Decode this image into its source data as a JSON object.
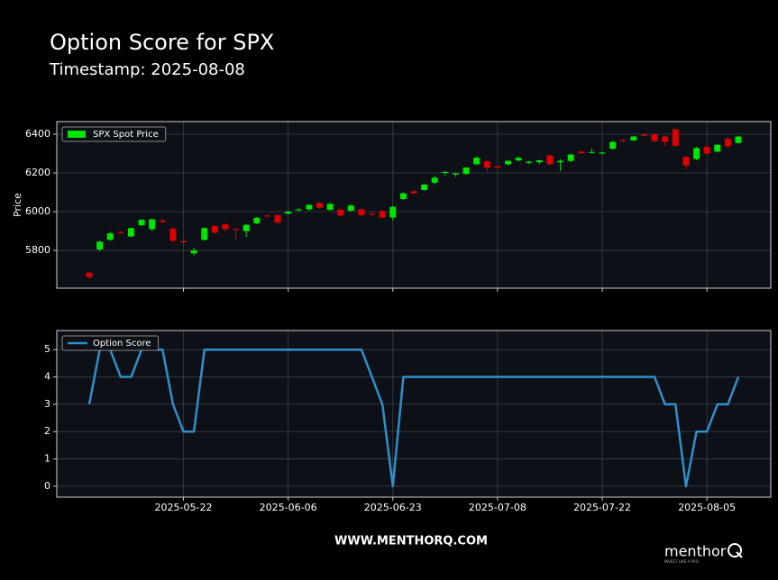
{
  "chart_data": [
    {
      "type": "candlestick",
      "title": "Option Score for SPX",
      "subtitle": "Timestamp: 2025-08-08",
      "ylabel": "Price",
      "ylim": [
        5605,
        6465
      ],
      "yticks": [
        5800,
        6000,
        6200,
        6400
      ],
      "xlim": [
        -3.1,
        65.1
      ],
      "grid": true,
      "legend": "upper left",
      "series": [
        {
          "name": "SPX Spot Price",
          "up_color": "#00e600",
          "down_color": "#e00000",
          "open": [
            5685,
            5805,
            5855,
            5895,
            5872,
            5930,
            5910,
            5955,
            5912,
            5848,
            5785,
            5855,
            5925,
            5935,
            5910,
            5900,
            5940,
            5980,
            5982,
            5990,
            6008,
            6012,
            6045,
            6010,
            6010,
            6005,
            6012,
            5990,
            6002,
            5970,
            6065,
            6105,
            6112,
            6150,
            6200,
            6192,
            6195,
            6245,
            6260,
            6235,
            6245,
            6265,
            6252,
            6255,
            6290,
            6255,
            6262,
            6310,
            6305,
            6300,
            6325,
            6370,
            6368,
            6398,
            6400,
            6388,
            6425,
            6283,
            6272,
            6335,
            6310,
            6375,
            6355
          ],
          "high": [
            5690,
            5850,
            5895,
            5900,
            5918,
            5962,
            5965,
            5960,
            5920,
            5860,
            5815,
            5920,
            5930,
            5940,
            5915,
            5935,
            5972,
            5985,
            5985,
            6005,
            6018,
            6038,
            6050,
            6045,
            6015,
            6038,
            6018,
            6000,
            6010,
            6030,
            6100,
            6110,
            6145,
            6185,
            6210,
            6202,
            6230,
            6285,
            6265,
            6240,
            6268,
            6285,
            6262,
            6268,
            6295,
            6270,
            6300,
            6315,
            6325,
            6310,
            6365,
            6375,
            6392,
            6402,
            6405,
            6392,
            6430,
            6288,
            6335,
            6345,
            6350,
            6385,
            6392
          ],
          "low": [
            5655,
            5795,
            5850,
            5885,
            5868,
            5925,
            5900,
            5940,
            5840,
            5835,
            5775,
            5850,
            5885,
            5895,
            5855,
            5870,
            5935,
            5970,
            5935,
            5985,
            6002,
            6005,
            6015,
            6005,
            5975,
            6000,
            5978,
            5978,
            5965,
            5955,
            6060,
            6090,
            6108,
            6140,
            6185,
            6180,
            6190,
            6240,
            6210,
            6222,
            6238,
            6260,
            6245,
            6245,
            6240,
            6210,
            6255,
            6298,
            6300,
            6295,
            6320,
            6360,
            6365,
            6388,
            6360,
            6340,
            6335,
            6220,
            6265,
            6295,
            6305,
            6325,
            6350
          ],
          "close": [
            5663,
            5845,
            5888,
            5890,
            5915,
            5958,
            5960,
            5948,
            5850,
            5842,
            5800,
            5915,
            5892,
            5910,
            5905,
            5932,
            5968,
            5975,
            5945,
            6000,
            6012,
            6035,
            6020,
            6040,
            5980,
            6032,
            5982,
            5985,
            5970,
            6025,
            6095,
            6095,
            6140,
            6175,
            6205,
            6198,
            6228,
            6278,
            6228,
            6228,
            6262,
            6278,
            6258,
            6265,
            6245,
            6262,
            6295,
            6302,
            6308,
            6305,
            6360,
            6365,
            6388,
            6392,
            6365,
            6360,
            6340,
            6238,
            6328,
            6300,
            6345,
            6338,
            6388
          ]
        }
      ]
    },
    {
      "type": "line",
      "ylim": [
        -0.4,
        5.7
      ],
      "yticks": [
        0,
        1,
        2,
        3,
        4,
        5
      ],
      "xlim": [
        -3.1,
        65.1
      ],
      "grid": true,
      "legend": "upper left",
      "categories": [
        null,
        null,
        null,
        null,
        null,
        null,
        null,
        null,
        null,
        "2025-05-22",
        null,
        null,
        null,
        null,
        null,
        null,
        null,
        null,
        null,
        "2025-06-06",
        null,
        null,
        null,
        null,
        null,
        null,
        null,
        null,
        null,
        "2025-06-23",
        null,
        null,
        null,
        null,
        null,
        null,
        null,
        null,
        null,
        "2025-07-08",
        null,
        null,
        null,
        null,
        null,
        null,
        null,
        null,
        null,
        "2025-07-22",
        null,
        null,
        null,
        null,
        null,
        null,
        null,
        null,
        null,
        "2025-08-05",
        null,
        null,
        null
      ],
      "series": [
        {
          "name": "Option Score",
          "color": "#2f8fc9",
          "values": [
            3,
            5,
            5,
            4,
            4,
            5,
            5,
            5,
            3,
            2,
            2,
            5,
            5,
            5,
            5,
            5,
            5,
            5,
            5,
            5,
            5,
            5,
            5,
            5,
            5,
            5,
            5,
            4,
            3,
            0,
            4,
            4,
            4,
            4,
            4,
            4,
            4,
            4,
            4,
            4,
            4,
            4,
            4,
            4,
            4,
            4,
            4,
            4,
            4,
            4,
            4,
            4,
            4,
            4,
            4,
            3,
            3,
            0,
            2,
            2,
            3,
            3,
            4
          ]
        }
      ]
    }
  ],
  "footer": {
    "url": "WWW.MENTHORQ.COM",
    "logo": "menthor",
    "tagline": "INVEST LIKE A PRO"
  }
}
